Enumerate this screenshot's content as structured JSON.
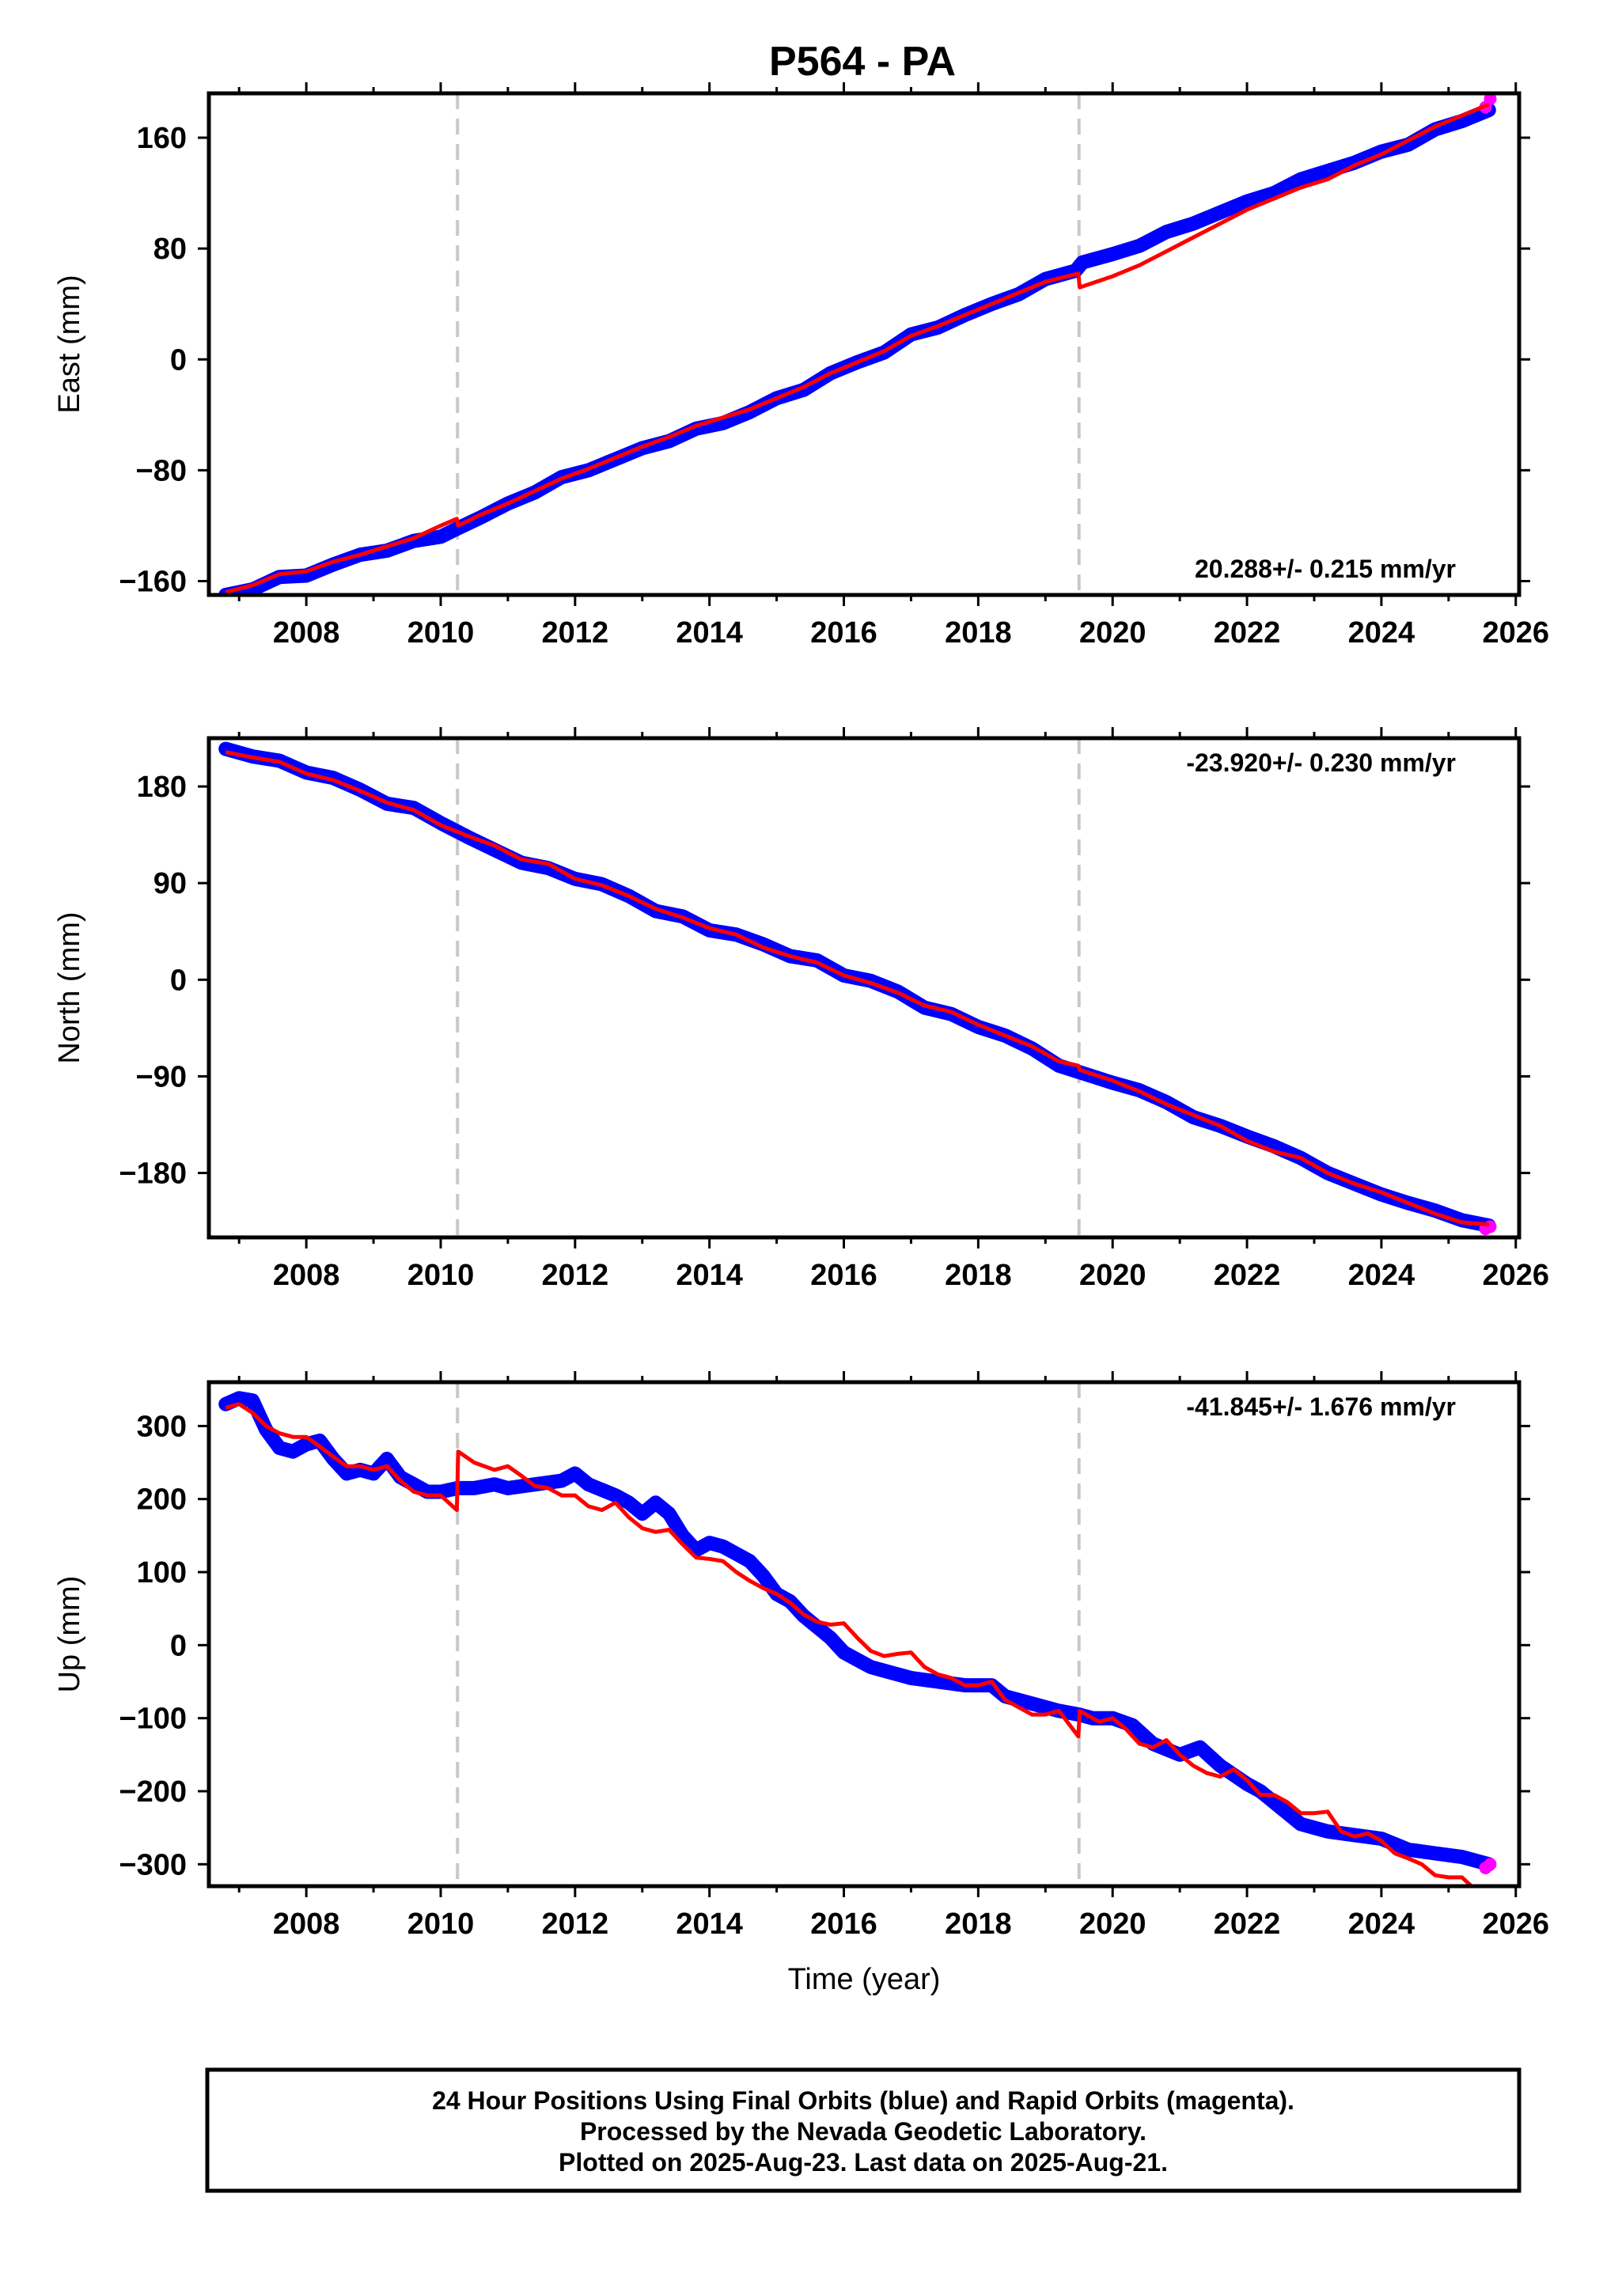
{
  "title": "P564 - PA",
  "colors": {
    "final": "#0000ff",
    "rapid": "#ff00ff",
    "model": "#ff0000",
    "breaks": "#c8c8c8",
    "frame": "#000000"
  },
  "chart_data": [
    {
      "type": "line",
      "panel": "east",
      "ylabel": "East (mm)",
      "ylim": [
        -170,
        192
      ],
      "yticks": [
        -160,
        -80,
        0,
        80,
        160
      ],
      "xlabel": "",
      "xlim": [
        2006.55,
        2026.05
      ],
      "xticks": [
        2008,
        2010,
        2012,
        2014,
        2016,
        2018,
        2020,
        2022,
        2024,
        2026
      ],
      "rate_label": "20.288+/- 0.215 mm/yr",
      "vertical_breaks": [
        2010.25,
        2019.5
      ],
      "series": [
        {
          "role": "final",
          "x": [
            2006.8,
            2007.2,
            2007.6,
            2008.0,
            2008.4,
            2008.8,
            2009.2,
            2009.6,
            2010.0,
            2010.25,
            2010.6,
            2011.0,
            2011.4,
            2011.8,
            2012.2,
            2012.6,
            2013.0,
            2013.4,
            2013.8,
            2014.2,
            2014.6,
            2015.0,
            2015.4,
            2015.8,
            2016.2,
            2016.6,
            2017.0,
            2017.4,
            2017.8,
            2018.2,
            2018.6,
            2019.0,
            2019.45,
            2019.55,
            2020.0,
            2020.4,
            2020.8,
            2021.2,
            2021.6,
            2022.0,
            2022.4,
            2022.8,
            2023.2,
            2023.6,
            2024.0,
            2024.4,
            2024.8,
            2025.2,
            2025.6
          ],
          "values": [
            -170,
            -166,
            -157,
            -156,
            -148,
            -141,
            -138,
            -131,
            -128,
            -122,
            -114,
            -104,
            -96,
            -85,
            -80,
            -72,
            -64,
            -59,
            -50,
            -46,
            -38,
            -28,
            -22,
            -10,
            -2,
            5,
            18,
            23,
            32,
            40,
            47,
            58,
            64,
            70,
            76,
            82,
            92,
            98,
            106,
            114,
            120,
            130,
            136,
            142,
            150,
            155,
            166,
            172,
            180
          ]
        },
        {
          "role": "rapid",
          "x": [
            2025.55,
            2025.62
          ],
          "values": [
            182,
            188
          ]
        }
      ],
      "model": {
        "x": [
          2006.8,
          2007.2,
          2007.6,
          2008.0,
          2008.4,
          2008.8,
          2009.2,
          2009.6,
          2010.0,
          2010.24,
          2010.26,
          2010.6,
          2011.0,
          2011.4,
          2011.8,
          2012.2,
          2012.6,
          2013.0,
          2013.4,
          2013.8,
          2014.2,
          2014.6,
          2015.0,
          2015.4,
          2015.8,
          2016.2,
          2016.6,
          2017.0,
          2017.4,
          2017.8,
          2018.2,
          2018.6,
          2019.0,
          2019.49,
          2019.51,
          2020.0,
          2020.4,
          2020.8,
          2021.2,
          2021.6,
          2022.0,
          2022.4,
          2022.8,
          2023.2,
          2023.6,
          2024.0,
          2024.4,
          2024.8,
          2025.2,
          2025.6
        ],
        "values": [
          -168,
          -163,
          -155,
          -153,
          -146,
          -141,
          -135,
          -129,
          -120,
          -115,
          -120,
          -112,
          -104,
          -95,
          -86,
          -79,
          -71,
          -63,
          -56,
          -48,
          -42,
          -36,
          -28,
          -20,
          -10,
          -2,
          6,
          17,
          24,
          32,
          40,
          48,
          56,
          62,
          52,
          60,
          68,
          78,
          88,
          98,
          108,
          116,
          124,
          130,
          140,
          148,
          158,
          168,
          176,
          184
        ]
      }
    },
    {
      "type": "line",
      "panel": "north",
      "ylabel": "North (mm)",
      "ylim": [
        -240,
        225
      ],
      "yticks": [
        -180,
        -90,
        0,
        90,
        180
      ],
      "xlabel": "",
      "xlim": [
        2006.55,
        2026.05
      ],
      "xticks": [
        2008,
        2010,
        2012,
        2014,
        2016,
        2018,
        2020,
        2022,
        2024,
        2026
      ],
      "rate_label": "-23.920+/- 0.230 mm/yr",
      "vertical_breaks": [
        2010.25,
        2019.5
      ],
      "series": [
        {
          "role": "final",
          "x": [
            2006.8,
            2007.2,
            2007.6,
            2008.0,
            2008.4,
            2008.8,
            2009.2,
            2009.6,
            2010.0,
            2010.4,
            2010.8,
            2011.2,
            2011.6,
            2012.0,
            2012.4,
            2012.8,
            2013.2,
            2013.6,
            2014.0,
            2014.4,
            2014.8,
            2015.2,
            2015.6,
            2016.0,
            2016.4,
            2016.8,
            2017.2,
            2017.6,
            2018.0,
            2018.4,
            2018.8,
            2019.2,
            2019.6,
            2020.0,
            2020.4,
            2020.8,
            2021.2,
            2021.6,
            2022.0,
            2022.4,
            2022.8,
            2023.2,
            2023.6,
            2024.0,
            2024.4,
            2024.8,
            2025.2,
            2025.6
          ],
          "values": [
            215,
            208,
            204,
            193,
            188,
            177,
            164,
            160,
            146,
            133,
            121,
            109,
            104,
            94,
            89,
            78,
            64,
            59,
            46,
            42,
            33,
            22,
            18,
            4,
            -1,
            -11,
            -26,
            -32,
            -44,
            -52,
            -64,
            -80,
            -88,
            -96,
            -103,
            -114,
            -128,
            -136,
            -146,
            -155,
            -166,
            -180,
            -190,
            -200,
            -208,
            -215,
            -224,
            -229
          ]
        },
        {
          "role": "rapid",
          "x": [
            2025.55,
            2025.62
          ],
          "values": [
            -232,
            -230
          ]
        }
      ],
      "model": {
        "x": [
          2006.8,
          2007.2,
          2007.6,
          2008.0,
          2008.4,
          2008.8,
          2009.2,
          2009.6,
          2010.0,
          2010.4,
          2010.8,
          2011.2,
          2011.6,
          2012.0,
          2012.4,
          2012.8,
          2013.2,
          2013.6,
          2014.0,
          2014.4,
          2014.8,
          2015.2,
          2015.6,
          2016.0,
          2016.4,
          2016.8,
          2017.2,
          2017.6,
          2018.0,
          2018.4,
          2018.8,
          2019.2,
          2019.49,
          2019.51,
          2020.0,
          2020.4,
          2020.8,
          2021.2,
          2021.6,
          2022.0,
          2022.4,
          2022.8,
          2023.2,
          2023.6,
          2024.0,
          2024.4,
          2024.8,
          2025.2,
          2025.6
        ],
        "values": [
          212,
          207,
          203,
          192,
          186,
          176,
          165,
          158,
          144,
          134,
          125,
          112,
          108,
          94,
          88,
          78,
          66,
          58,
          48,
          42,
          30,
          22,
          16,
          4,
          -3,
          -12,
          -24,
          -30,
          -42,
          -52,
          -62,
          -76,
          -80,
          -84,
          -94,
          -104,
          -116,
          -126,
          -136,
          -150,
          -160,
          -166,
          -180,
          -190,
          -198,
          -208,
          -218,
          -226,
          -228
        ]
      }
    },
    {
      "type": "line",
      "panel": "up",
      "ylabel": "Up (mm)",
      "ylim": [
        -330,
        360
      ],
      "yticks": [
        -300,
        -200,
        -100,
        0,
        100,
        200,
        300
      ],
      "xlabel": "Time (year)",
      "xlim": [
        2006.55,
        2026.05
      ],
      "xticks": [
        2008,
        2010,
        2012,
        2014,
        2016,
        2018,
        2020,
        2022,
        2024,
        2026
      ],
      "rate_label": "-41.845+/- 1.676 mm/yr",
      "vertical_breaks": [
        2010.25,
        2019.5
      ],
      "series": [
        {
          "role": "final",
          "x": [
            2006.8,
            2007.0,
            2007.2,
            2007.4,
            2007.6,
            2007.8,
            2008.0,
            2008.2,
            2008.4,
            2008.6,
            2008.8,
            2009.0,
            2009.2,
            2009.4,
            2009.6,
            2009.8,
            2010.0,
            2010.25,
            2010.5,
            2010.8,
            2011.0,
            2011.4,
            2011.8,
            2012.0,
            2012.2,
            2012.6,
            2012.8,
            2013.0,
            2013.2,
            2013.4,
            2013.6,
            2013.8,
            2014.0,
            2014.2,
            2014.4,
            2014.6,
            2014.8,
            2015.0,
            2015.2,
            2015.4,
            2015.6,
            2015.8,
            2016.0,
            2016.2,
            2016.4,
            2016.6,
            2016.8,
            2017.0,
            2017.4,
            2017.8,
            2018.2,
            2018.4,
            2018.8,
            2019.2,
            2019.5,
            2019.7,
            2020.0,
            2020.3,
            2020.6,
            2021.0,
            2021.3,
            2021.6,
            2022.0,
            2022.2,
            2022.4,
            2022.8,
            2023.2,
            2023.6,
            2024.0,
            2024.4,
            2024.8,
            2025.2,
            2025.6
          ],
          "values": [
            330,
            338,
            335,
            295,
            270,
            265,
            275,
            280,
            255,
            235,
            240,
            235,
            255,
            230,
            220,
            210,
            210,
            215,
            215,
            220,
            215,
            220,
            225,
            235,
            220,
            205,
            195,
            180,
            195,
            180,
            150,
            130,
            140,
            135,
            125,
            115,
            95,
            70,
            60,
            40,
            25,
            10,
            -10,
            -20,
            -30,
            -35,
            -40,
            -45,
            -50,
            -55,
            -55,
            -70,
            -80,
            -90,
            -95,
            -100,
            -100,
            -110,
            -135,
            -150,
            -140,
            -165,
            -190,
            -200,
            -215,
            -245,
            -255,
            -260,
            -265,
            -280,
            -285,
            -290,
            -300
          ]
        },
        {
          "role": "rapid",
          "x": [
            2025.55,
            2025.62
          ],
          "values": [
            -305,
            -300
          ]
        }
      ],
      "model": {
        "x": [
          2006.8,
          2007.0,
          2007.2,
          2007.4,
          2007.6,
          2007.8,
          2008.0,
          2008.2,
          2008.4,
          2008.6,
          2008.8,
          2009.0,
          2009.2,
          2009.4,
          2009.6,
          2009.8,
          2010.0,
          2010.24,
          2010.26,
          2010.5,
          2010.8,
          2011.0,
          2011.2,
          2011.4,
          2011.6,
          2011.8,
          2012.0,
          2012.2,
          2012.4,
          2012.6,
          2012.8,
          2013.0,
          2013.2,
          2013.4,
          2013.6,
          2013.8,
          2014.0,
          2014.2,
          2014.4,
          2014.6,
          2014.8,
          2015.0,
          2015.2,
          2015.4,
          2015.6,
          2015.8,
          2016.0,
          2016.2,
          2016.4,
          2016.6,
          2016.8,
          2017.0,
          2017.2,
          2017.4,
          2017.6,
          2017.8,
          2018.0,
          2018.2,
          2018.4,
          2018.6,
          2018.8,
          2019.0,
          2019.2,
          2019.49,
          2019.51,
          2019.8,
          2020.0,
          2020.2,
          2020.4,
          2020.6,
          2020.8,
          2021.0,
          2021.2,
          2021.4,
          2021.6,
          2021.8,
          2022.0,
          2022.2,
          2022.4,
          2022.6,
          2022.8,
          2023.0,
          2023.2,
          2023.4,
          2023.6,
          2023.8,
          2024.0,
          2024.2,
          2024.4,
          2024.6,
          2024.8,
          2025.0,
          2025.2,
          2025.4,
          2025.6
        ],
        "values": [
          325,
          330,
          318,
          300,
          290,
          285,
          285,
          272,
          258,
          245,
          245,
          240,
          245,
          225,
          210,
          205,
          205,
          185,
          265,
          250,
          240,
          245,
          232,
          218,
          215,
          205,
          205,
          190,
          185,
          195,
          175,
          160,
          155,
          158,
          138,
          120,
          118,
          115,
          100,
          88,
          78,
          70,
          58,
          42,
          32,
          28,
          30,
          10,
          -8,
          -15,
          -12,
          -10,
          -30,
          -40,
          -45,
          -55,
          -55,
          -50,
          -75,
          -85,
          -95,
          -95,
          -90,
          -125,
          -90,
          -105,
          -100,
          -115,
          -135,
          -140,
          -130,
          -150,
          -165,
          -175,
          -180,
          -170,
          -185,
          -205,
          -205,
          -215,
          -230,
          -230,
          -228,
          -255,
          -262,
          -258,
          -268,
          -285,
          -292,
          -300,
          -315,
          -318,
          -318,
          -335,
          -345
        ]
      }
    }
  ],
  "footer": {
    "line1": "24 Hour Positions Using Final Orbits (blue) and Rapid Orbits (magenta).",
    "line2": "Processed by the Nevada Geodetic Laboratory.",
    "line3": "Plotted on 2025-Aug-23. Last data on 2025-Aug-21."
  }
}
